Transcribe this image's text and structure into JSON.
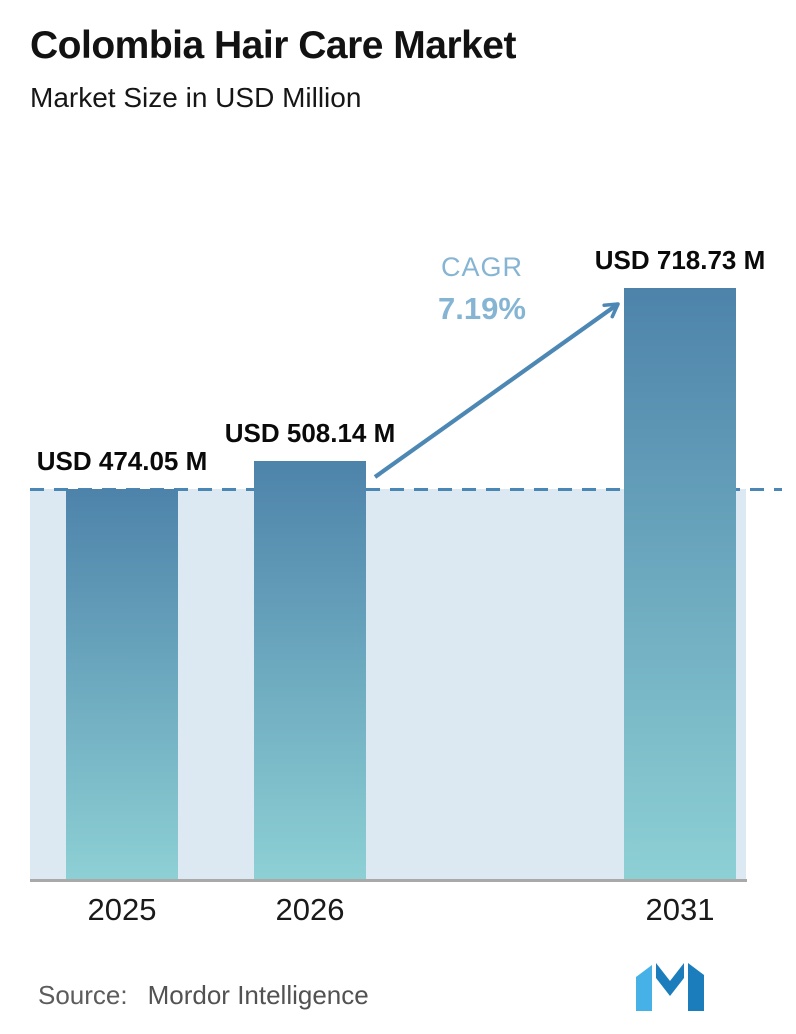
{
  "chart_data": {
    "type": "bar",
    "title": "Colombia Hair Care Market",
    "subtitle": "Market Size in USD Million",
    "categories": [
      "2025",
      "2026",
      "2031"
    ],
    "values": [
      474.05,
      508.14,
      718.73
    ],
    "bar_labels": [
      "USD 474.05 M",
      "USD 508.14 M",
      "USD 718.73 M"
    ],
    "cagr_label": "CAGR",
    "cagr_value": "7.19%",
    "reference_line_value": 474.05,
    "xlabel": "",
    "ylabel": "",
    "ylim": [
      0,
      790
    ],
    "grid": false,
    "legend": false,
    "colors": {
      "bar_gradient_top": "#4d83aa",
      "bar_gradient_bottom": "#8dd0d4",
      "reference_band": "#dde9f2",
      "dashed_line": "#4a87b4",
      "arrow": "#4d88b5",
      "cagr_text": "#86b5d4",
      "axis_line": "#a9a9a9"
    }
  },
  "source": {
    "label": "Source:",
    "value": "Mordor Intelligence"
  },
  "logo": {
    "name": "mordor-intelligence-logo",
    "colors": {
      "light": "#45b1e6",
      "dark": "#1c7dbd"
    }
  }
}
